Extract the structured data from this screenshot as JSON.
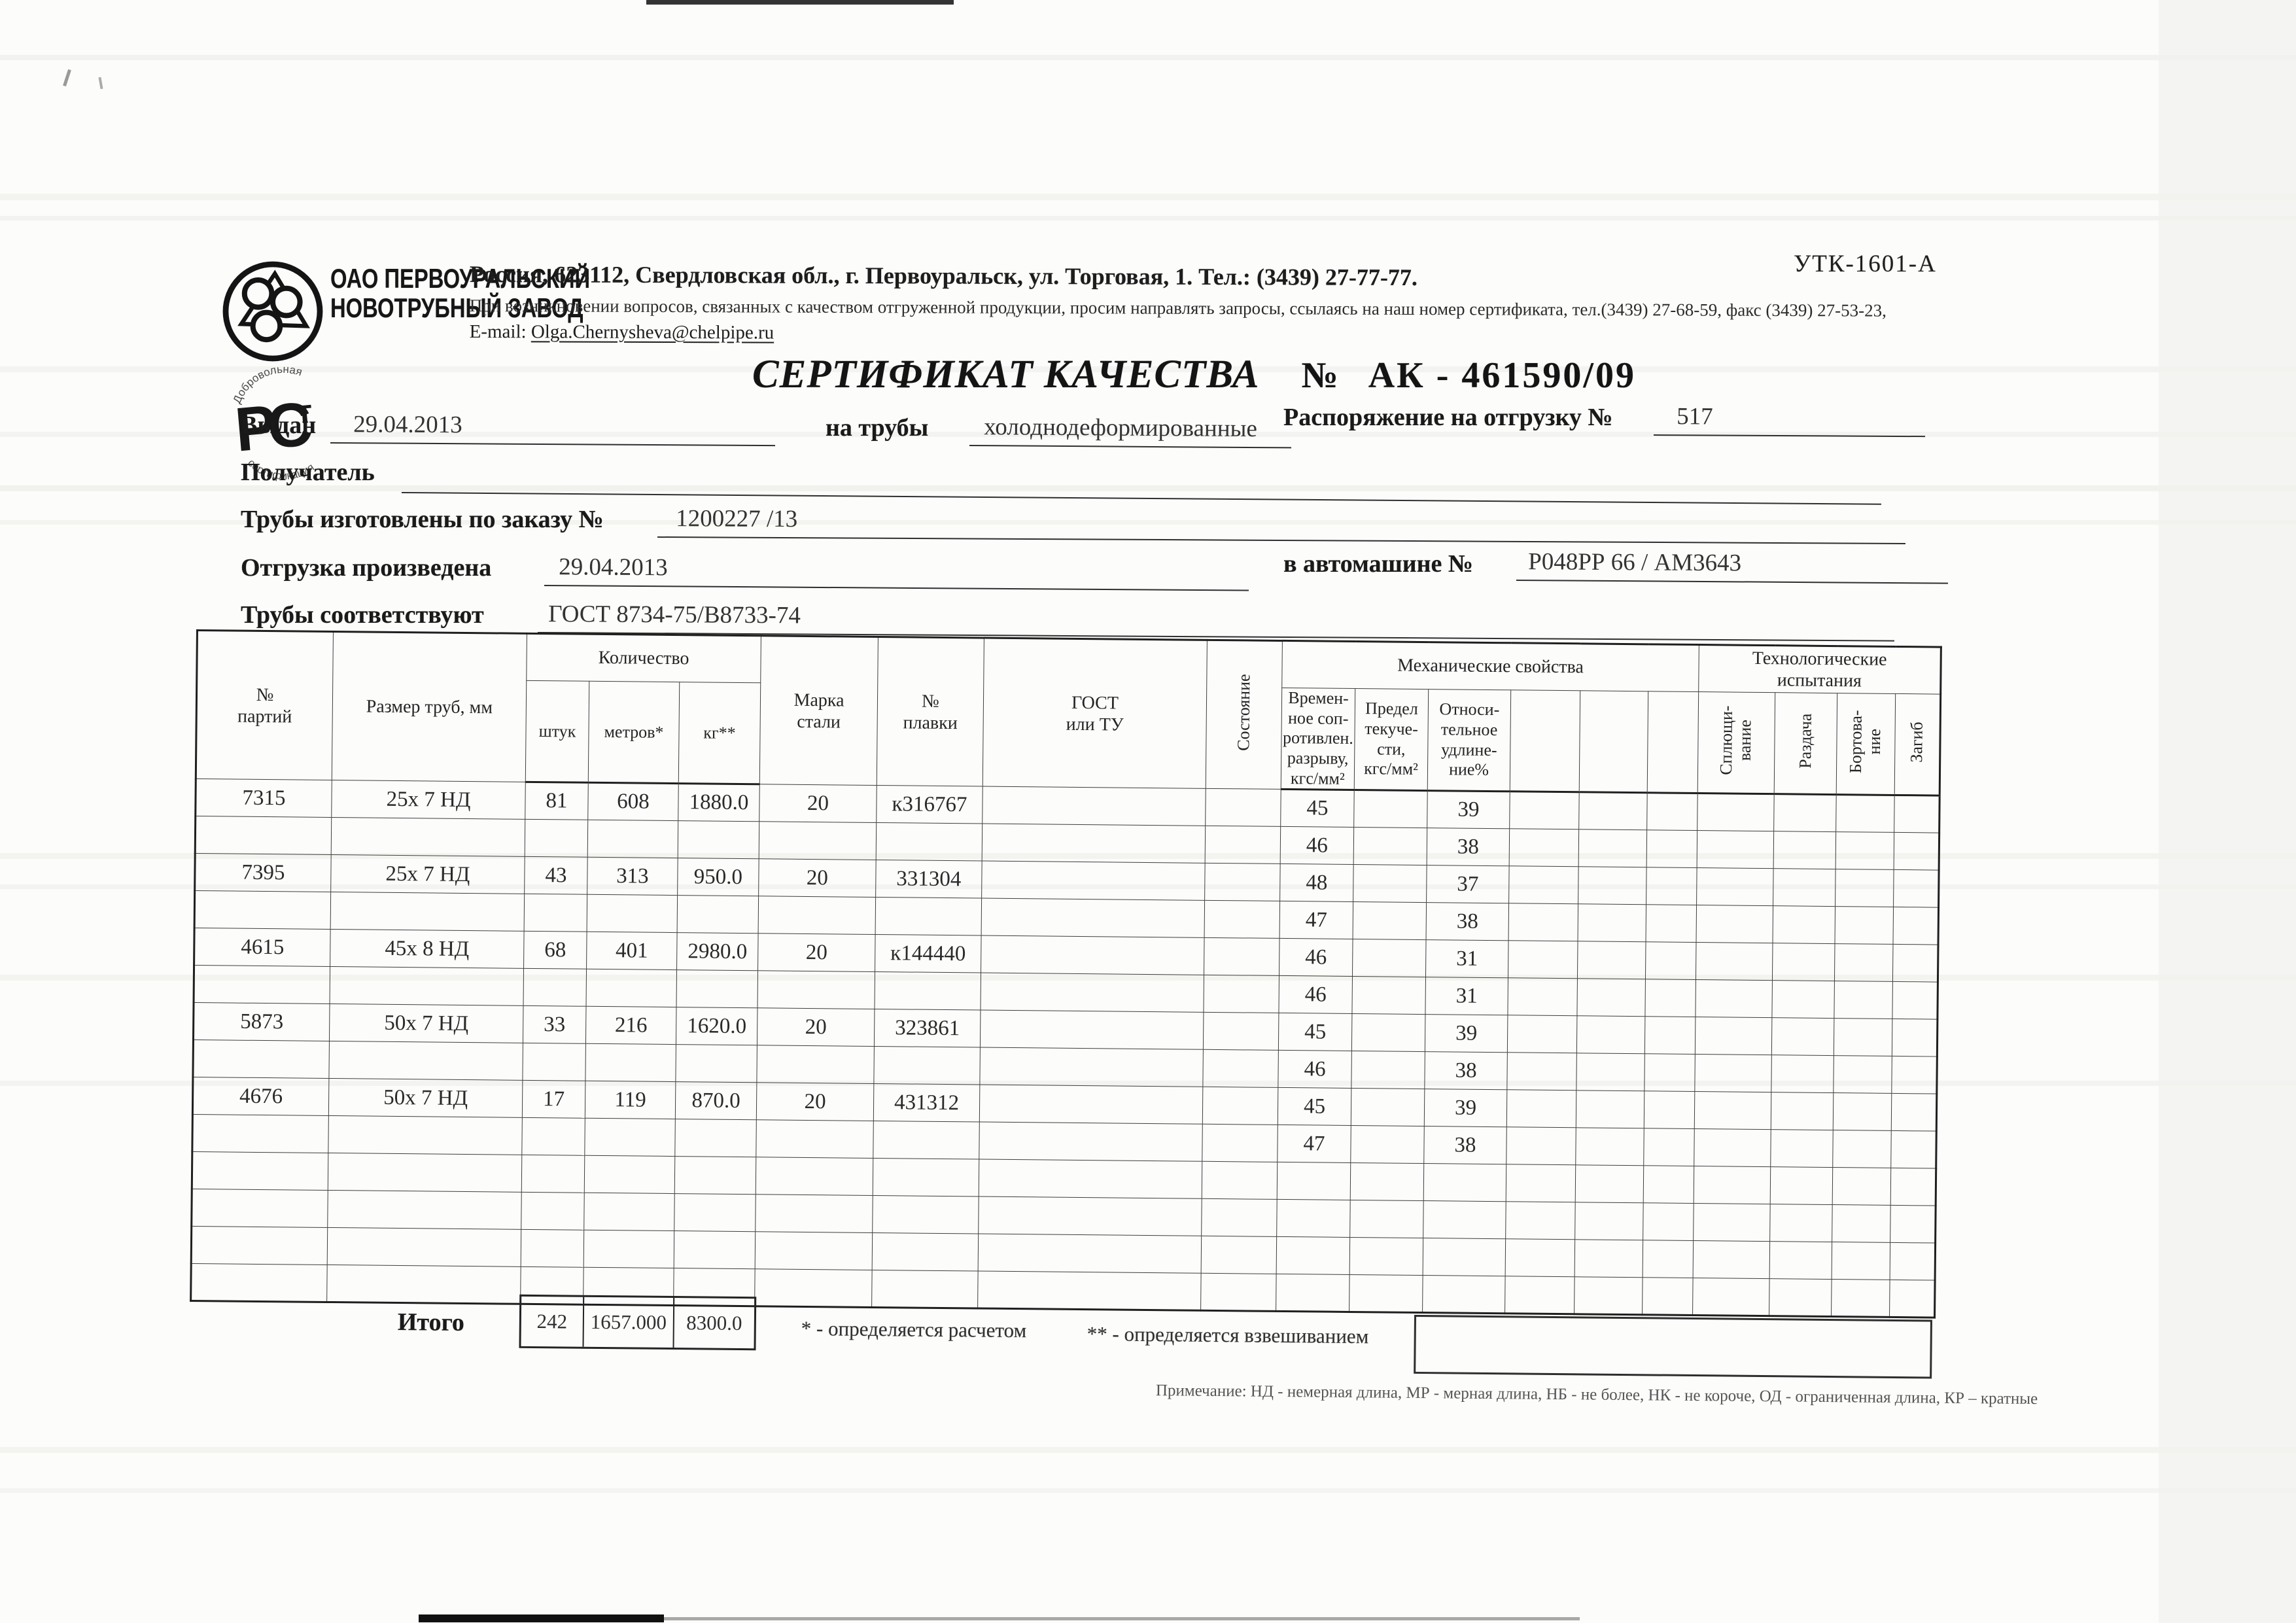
{
  "page": {
    "form_code": "УТК-1601-А",
    "company": {
      "name": "ОАО ПЕРВОУРАЛЬСКИЙ\nНОВОТРУБНЫЙ ЗАВОД",
      "rst_top": "Добровольная",
      "rst_letters": "РСТ",
      "rst_bottom": "сертификация"
    },
    "contact": {
      "line1": "Россия, 623112, Свердловская обл., г. Первоуральск, ул. Торговая, 1. Тел.: (3439) 27-77-77.",
      "line2": "При возникновении вопросов, связанных с качеством отгруженной продукции, просим направлять запросы, ссылаясь на наш номер сертификата, тел.(3439) 27-68-59, факс (3439) 27-53-23,",
      "email_label": "E-mail:",
      "email": "Olga.Chernysheva@chelpipe.ru"
    },
    "title": {
      "main": "СЕРТИФИКАТ КАЧЕСТВА",
      "number_label": "№",
      "number": "АК - 461590/09"
    },
    "fields": {
      "issued_label": "Выдан",
      "issued_value": "29.04.2013",
      "pipes_label": "на трубы",
      "pipes_value": "холоднодеформированные",
      "ship_order_label": "Распоряжение на отгрузку №",
      "ship_order_value": "517",
      "receiver_label": "Получатель",
      "receiver_value": "",
      "made_order_label": "Трубы изготовлены по заказу №",
      "made_order_value": "1200227  /13",
      "shipped_label": "Отгрузка произведена",
      "shipped_value": "29.04.2013",
      "truck_label": "в автомашине №",
      "truck_value": "Р048РР 66 / АМ3643",
      "conform_label": "Трубы соответствуют",
      "conform_value": "ГОСТ 8734-75/В8733-74"
    },
    "table": {
      "columns": {
        "party": "№\nпартий",
        "size": "Размер труб, мм",
        "qty_group": "Количество",
        "pcs": "штук",
        "meters": "метров*",
        "kg": "кг**",
        "steel": "Марка\nстали",
        "melt": "№\nплавки",
        "gost": "ГОСТ\nили ТУ",
        "state": "Состояние",
        "mech_group": "Механические свойства",
        "mech1": "Времен-\nное соп-\nротивлен.\nразрыву,\nкгс/мм²",
        "mech2": "Предел\nтекуче-\nсти,\nкгс/мм²",
        "mech3": "Относи-\nтельное\nудлине-\nние%",
        "tech_group": "Технологические\nиспытания",
        "tech1": "Сплющи-\nвание",
        "tech2": "Раздача",
        "tech3": "Бортова-\nние",
        "tech4": "Загиб"
      },
      "rows": [
        [
          "7315",
          "25х 7 НД",
          "81",
          "608",
          "1880.0",
          "20",
          "к316767",
          "",
          "",
          "45",
          "",
          "39",
          "",
          "",
          "",
          "",
          "",
          "",
          ""
        ],
        [
          "",
          "",
          "",
          "",
          "",
          "",
          "",
          "",
          "",
          "46",
          "",
          "38",
          "",
          "",
          "",
          "",
          "",
          "",
          ""
        ],
        [
          "7395",
          "25х 7 НД",
          "43",
          "313",
          "950.0",
          "20",
          "331304",
          "",
          "",
          "48",
          "",
          "37",
          "",
          "",
          "",
          "",
          "",
          "",
          ""
        ],
        [
          "",
          "",
          "",
          "",
          "",
          "",
          "",
          "",
          "",
          "47",
          "",
          "38",
          "",
          "",
          "",
          "",
          "",
          "",
          ""
        ],
        [
          "4615",
          "45х 8 НД",
          "68",
          "401",
          "2980.0",
          "20",
          "к144440",
          "",
          "",
          "46",
          "",
          "31",
          "",
          "",
          "",
          "",
          "",
          "",
          ""
        ],
        [
          "",
          "",
          "",
          "",
          "",
          "",
          "",
          "",
          "",
          "46",
          "",
          "31",
          "",
          "",
          "",
          "",
          "",
          "",
          ""
        ],
        [
          "5873",
          "50х 7 НД",
          "33",
          "216",
          "1620.0",
          "20",
          "323861",
          "",
          "",
          "45",
          "",
          "39",
          "",
          "",
          "",
          "",
          "",
          "",
          ""
        ],
        [
          "",
          "",
          "",
          "",
          "",
          "",
          "",
          "",
          "",
          "46",
          "",
          "38",
          "",
          "",
          "",
          "",
          "",
          "",
          ""
        ],
        [
          "4676",
          "50х 7 НД",
          "17",
          "119",
          "870.0",
          "20",
          "431312",
          "",
          "",
          "45",
          "",
          "39",
          "",
          "",
          "",
          "",
          "",
          "",
          ""
        ],
        [
          "",
          "",
          "",
          "",
          "",
          "",
          "",
          "",
          "",
          "47",
          "",
          "38",
          "",
          "",
          "",
          "",
          "",
          "",
          ""
        ],
        [
          "",
          "",
          "",
          "",
          "",
          "",
          "",
          "",
          "",
          "",
          "",
          "",
          "",
          "",
          "",
          "",
          "",
          "",
          ""
        ],
        [
          "",
          "",
          "",
          "",
          "",
          "",
          "",
          "",
          "",
          "",
          "",
          "",
          "",
          "",
          "",
          "",
          "",
          "",
          ""
        ],
        [
          "",
          "",
          "",
          "",
          "",
          "",
          "",
          "",
          "",
          "",
          "",
          "",
          "",
          "",
          "",
          "",
          "",
          "",
          ""
        ],
        [
          "",
          "",
          "",
          "",
          "",
          "",
          "",
          "",
          "",
          "",
          "",
          "",
          "",
          "",
          "",
          "",
          "",
          "",
          ""
        ]
      ],
      "totals": {
        "label": "Итого",
        "pcs": "242",
        "meters": "1657.000",
        "kg": "8300.0"
      }
    },
    "footnotes": {
      "star": "* - определяется расчетом",
      "double_star": "** - определяется взвешиванием",
      "note": "Примечание: НД - немерная длина, МР - мерная длина, НБ - не более, НК - не короче, ОД - ограниченная длина, КР – кратные"
    }
  }
}
